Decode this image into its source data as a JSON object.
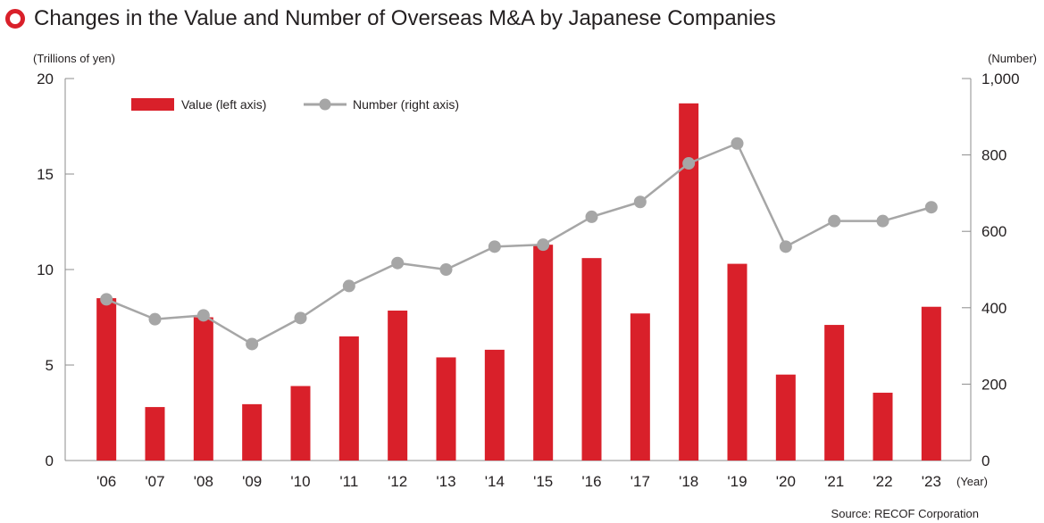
{
  "title": "Changes in the Value and Number of Overseas M&A by Japanese Companies",
  "source": "Source: RECOF Corporation",
  "colors": {
    "bar": "#d9202a",
    "line": "#a6a6a6",
    "title_marker": "#d9202a"
  },
  "chart_data": {
    "type": "bar+line",
    "categories": [
      "'06",
      "'07",
      "'08",
      "'09",
      "'10",
      "'11",
      "'12",
      "'13",
      "'14",
      "'15",
      "'16",
      "'17",
      "'18",
      "'19",
      "'20",
      "'21",
      "'22",
      "'23"
    ],
    "xlabel": "(Year)",
    "left_axis": {
      "label": "(Trillions of yen)",
      "range": [
        0,
        20
      ],
      "ticks": [
        0,
        5,
        10,
        15,
        20
      ],
      "tick_labels": [
        "0",
        "5",
        "10",
        "15",
        "20"
      ]
    },
    "right_axis": {
      "label": "(Number)",
      "range": [
        0,
        1000
      ],
      "ticks": [
        0,
        200,
        400,
        600,
        800,
        1000
      ],
      "tick_labels": [
        "0",
        "200",
        "400",
        "600",
        "800",
        "1,000"
      ]
    },
    "legend": {
      "position": "top-left",
      "value_label": "Value (left axis)",
      "number_label": "Number (right axis)"
    },
    "series": [
      {
        "name": "Value (left axis)",
        "type": "bar",
        "axis": "left",
        "values": [
          8.5,
          2.8,
          7.5,
          2.95,
          3.9,
          6.5,
          7.85,
          5.4,
          5.8,
          11.3,
          10.6,
          7.7,
          18.7,
          10.3,
          4.5,
          7.1,
          3.55,
          8.05
        ]
      },
      {
        "name": "Number (right axis)",
        "type": "line",
        "axis": "right",
        "values": [
          422,
          370,
          380,
          305,
          373,
          457,
          517,
          500,
          560,
          565,
          638,
          677,
          778,
          830,
          560,
          627,
          627,
          663
        ]
      }
    ]
  }
}
